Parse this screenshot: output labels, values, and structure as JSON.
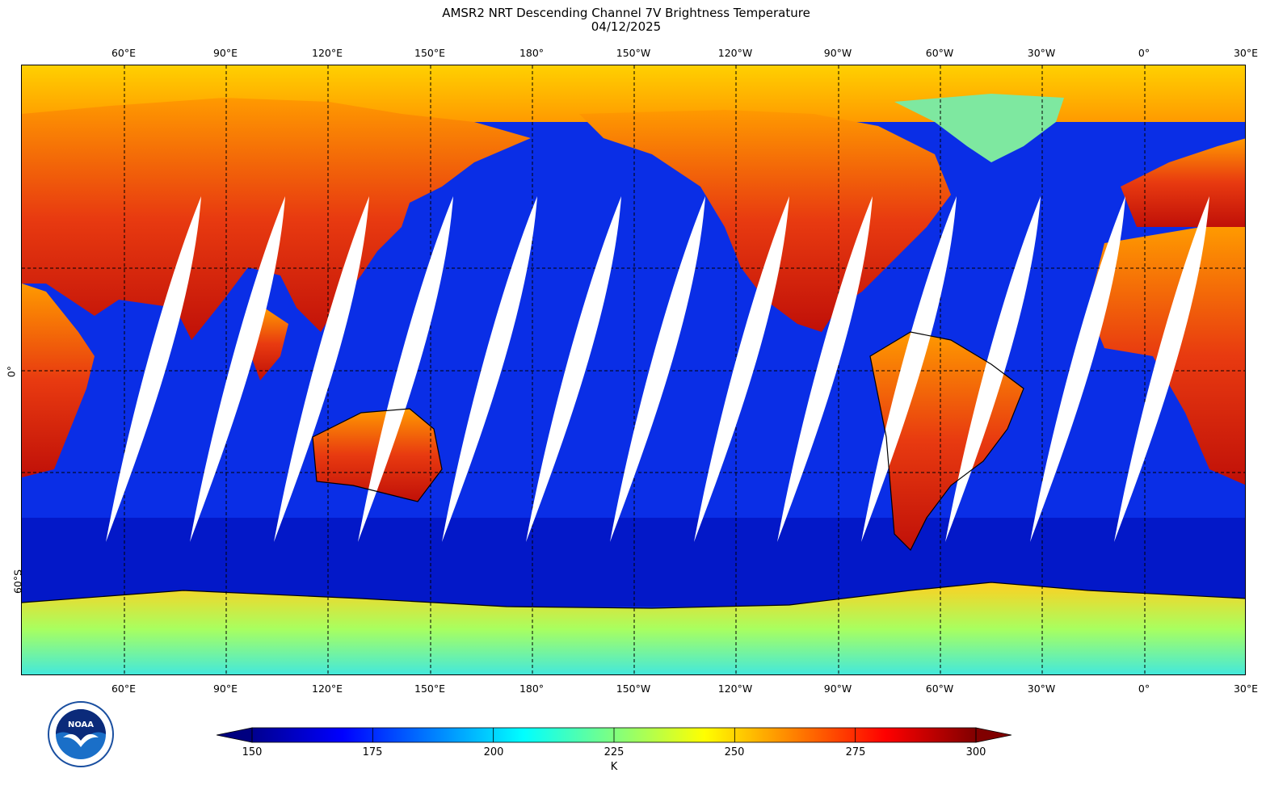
{
  "title": {
    "line1": "AMSR2 NRT Descending Channel 7V Brightness Temperature",
    "line2": "04/12/2025"
  },
  "longitude_ticks": [
    "60°E",
    "90°E",
    "120°E",
    "150°E",
    "180°",
    "150°W",
    "120°W",
    "90°W",
    "60°W",
    "30°W",
    "0°",
    "30°E"
  ],
  "latitude_ticks": [
    "0°",
    "60°S"
  ],
  "colorbar": {
    "ticks": [
      "150",
      "175",
      "200",
      "225",
      "250",
      "275",
      "300"
    ],
    "unit": "K",
    "range": [
      150,
      300
    ],
    "colormap": "jet",
    "colors": [
      "#00008f",
      "#0000ff",
      "#0080ff",
      "#00ffff",
      "#80ff80",
      "#ffff00",
      "#ff8000",
      "#ff0000",
      "#800000"
    ]
  },
  "map": {
    "projection": "equirectangular",
    "longitude_range": [
      "30°E",
      "390°E"
    ],
    "ocean_color": "#0a2fe6",
    "land_color": "#e8501a",
    "ice_color": "#7ee8a0",
    "swath_gap_color": "#ffffff",
    "gridlines": "dashed"
  },
  "logo": {
    "name": "noaa-logo"
  }
}
